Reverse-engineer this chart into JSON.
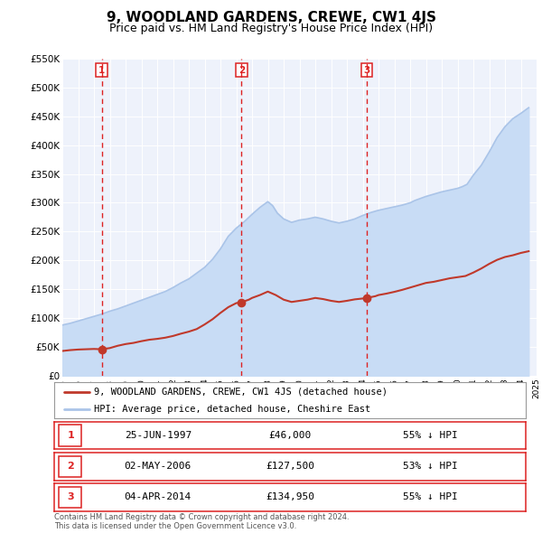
{
  "title": "9, WOODLAND GARDENS, CREWE, CW1 4JS",
  "subtitle": "Price paid vs. HM Land Registry's House Price Index (HPI)",
  "title_fontsize": 11,
  "subtitle_fontsize": 9,
  "background_color": "#ffffff",
  "plot_bg_color": "#eef2fb",
  "grid_color": "#ffffff",
  "ylim": [
    0,
    550000
  ],
  "yticks": [
    0,
    50000,
    100000,
    150000,
    200000,
    250000,
    300000,
    350000,
    400000,
    450000,
    500000,
    550000
  ],
  "ytick_labels": [
    "£0",
    "£50K",
    "£100K",
    "£150K",
    "£200K",
    "£250K",
    "£300K",
    "£350K",
    "£400K",
    "£450K",
    "£500K",
    "£550K"
  ],
  "xtick_years": [
    1995,
    1996,
    1997,
    1998,
    1999,
    2000,
    2001,
    2002,
    2003,
    2004,
    2005,
    2006,
    2007,
    2008,
    2009,
    2010,
    2011,
    2012,
    2013,
    2014,
    2015,
    2016,
    2017,
    2018,
    2019,
    2020,
    2021,
    2022,
    2023,
    2024,
    2025
  ],
  "hpi_color": "#aac4e8",
  "hpi_fill_color": "#c8dcf5",
  "price_color": "#c0392b",
  "vline_color": "#dd2222",
  "purchase_dates": [
    1997.49,
    2006.33,
    2014.25
  ],
  "purchase_prices": [
    46000,
    127500,
    134950
  ],
  "purchase_labels": [
    "1",
    "2",
    "3"
  ],
  "legend_label_red": "9, WOODLAND GARDENS, CREWE, CW1 4JS (detached house)",
  "legend_label_blue": "HPI: Average price, detached house, Cheshire East",
  "table_entries": [
    {
      "label": "1",
      "date": "25-JUN-1997",
      "price": "£46,000",
      "pct": "55% ↓ HPI"
    },
    {
      "label": "2",
      "date": "02-MAY-2006",
      "price": "£127,500",
      "pct": "53% ↓ HPI"
    },
    {
      "label": "3",
      "date": "04-APR-2014",
      "price": "£134,950",
      "pct": "55% ↓ HPI"
    }
  ],
  "footer": "Contains HM Land Registry data © Crown copyright and database right 2024.\nThis data is licensed under the Open Government Licence v3.0.",
  "hpi_x": [
    1995.0,
    1995.5,
    1996.0,
    1996.5,
    1997.0,
    1997.5,
    1998.0,
    1998.5,
    1999.0,
    1999.5,
    2000.0,
    2000.5,
    2001.0,
    2001.5,
    2002.0,
    2002.5,
    2003.0,
    2003.5,
    2004.0,
    2004.5,
    2005.0,
    2005.5,
    2006.0,
    2006.5,
    2007.0,
    2007.5,
    2008.0,
    2008.3,
    2008.6,
    2009.0,
    2009.5,
    2010.0,
    2010.5,
    2011.0,
    2011.5,
    2012.0,
    2012.5,
    2013.0,
    2013.5,
    2014.0,
    2014.5,
    2015.0,
    2015.5,
    2016.0,
    2016.5,
    2017.0,
    2017.3,
    2017.6,
    2018.0,
    2018.5,
    2019.0,
    2019.5,
    2020.0,
    2020.3,
    2020.6,
    2021.0,
    2021.5,
    2022.0,
    2022.5,
    2023.0,
    2023.5,
    2024.0,
    2024.5
  ],
  "hpi_y": [
    88000,
    91000,
    95000,
    99000,
    103000,
    107000,
    112000,
    116000,
    121000,
    126000,
    131000,
    136000,
    141000,
    146000,
    153000,
    161000,
    168000,
    178000,
    188000,
    202000,
    220000,
    242000,
    256000,
    267000,
    280000,
    292000,
    302000,
    295000,
    282000,
    272000,
    266000,
    270000,
    272000,
    275000,
    272000,
    268000,
    265000,
    268000,
    272000,
    278000,
    283000,
    287000,
    290000,
    293000,
    296000,
    300000,
    304000,
    307000,
    311000,
    315000,
    319000,
    322000,
    325000,
    328000,
    332000,
    348000,
    365000,
    388000,
    413000,
    432000,
    446000,
    455000,
    465000
  ],
  "price_x": [
    1995.0,
    1995.5,
    1996.0,
    1996.5,
    1997.0,
    1997.49,
    1998.0,
    1998.5,
    1999.0,
    1999.5,
    2000.0,
    2000.5,
    2001.0,
    2001.5,
    2002.0,
    2002.5,
    2003.0,
    2003.5,
    2004.0,
    2004.5,
    2005.0,
    2005.5,
    2006.0,
    2006.33,
    2006.8,
    2007.0,
    2007.5,
    2008.0,
    2008.5,
    2009.0,
    2009.5,
    2010.0,
    2010.5,
    2011.0,
    2011.5,
    2012.0,
    2012.5,
    2013.0,
    2013.5,
    2014.0,
    2014.25,
    2014.8,
    2015.0,
    2015.5,
    2016.0,
    2016.5,
    2017.0,
    2017.5,
    2018.0,
    2018.5,
    2019.0,
    2019.5,
    2020.0,
    2020.5,
    2021.0,
    2021.5,
    2022.0,
    2022.5,
    2023.0,
    2023.5,
    2024.0,
    2024.5
  ],
  "price_y": [
    43000,
    44500,
    45500,
    46000,
    46500,
    46000,
    48000,
    52000,
    55000,
    57000,
    60000,
    62500,
    64000,
    66000,
    69000,
    73000,
    76500,
    81000,
    89000,
    98000,
    109000,
    119000,
    126000,
    127500,
    132000,
    135000,
    140000,
    146000,
    140000,
    132000,
    128000,
    130000,
    132000,
    135000,
    133000,
    130000,
    128000,
    130000,
    132500,
    134000,
    134950,
    138000,
    140000,
    142500,
    145500,
    149000,
    153000,
    157000,
    161000,
    163000,
    166000,
    169000,
    171000,
    173000,
    179000,
    186000,
    194000,
    201000,
    206000,
    209000,
    213000,
    216000
  ]
}
